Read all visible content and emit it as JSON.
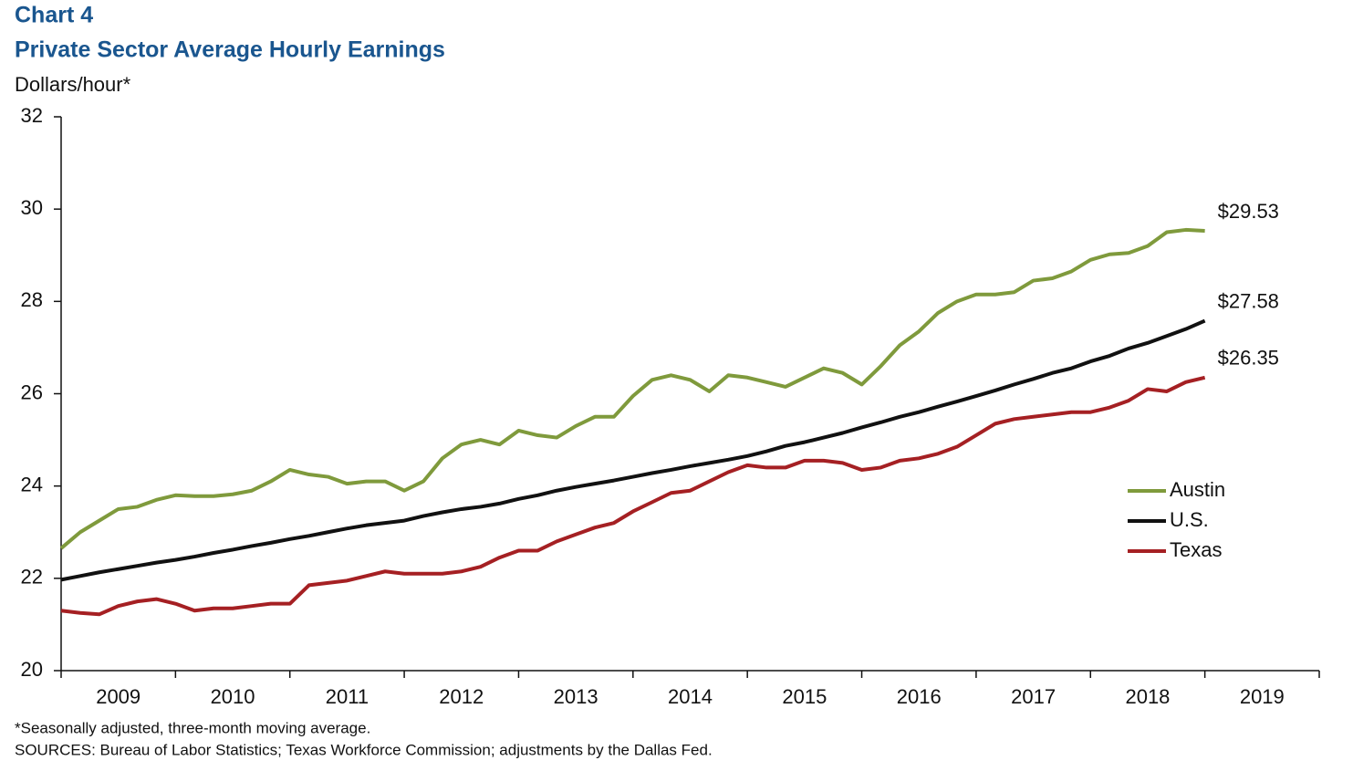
{
  "chart_data": {
    "type": "line",
    "label": "Chart 4",
    "title": "Private Sector Average Hourly Earnings",
    "y_label": "Dollars/hour*",
    "footnote": "*Seasonally adjusted, three-month  moving average.",
    "sources": "SOURCES: Bureau of Labor Statistics; Texas Workforce Commission; adjustments by the Dallas Fed.",
    "x": [
      2009,
      2009.167,
      2009.333,
      2009.5,
      2009.667,
      2009.833,
      2010,
      2010.167,
      2010.333,
      2010.5,
      2010.667,
      2010.833,
      2011,
      2011.167,
      2011.333,
      2011.5,
      2011.667,
      2011.833,
      2012,
      2012.167,
      2012.333,
      2012.5,
      2012.667,
      2012.833,
      2013,
      2013.167,
      2013.333,
      2013.5,
      2013.667,
      2013.833,
      2014,
      2014.167,
      2014.333,
      2014.5,
      2014.667,
      2014.833,
      2015,
      2015.167,
      2015.333,
      2015.5,
      2015.667,
      2015.833,
      2016,
      2016.167,
      2016.333,
      2016.5,
      2016.667,
      2016.833,
      2017,
      2017.167,
      2017.333,
      2017.5,
      2017.667,
      2017.833,
      2018,
      2018.167,
      2018.333,
      2018.5,
      2018.667,
      2018.833,
      2019
    ],
    "xlim": [
      2009,
      2020
    ],
    "xticks": [
      2009,
      2010,
      2011,
      2012,
      2013,
      2014,
      2015,
      2016,
      2017,
      2018,
      2019,
      2020
    ],
    "xlabels": [
      {
        "value": 2009.5,
        "label": "2009"
      },
      {
        "value": 2010.5,
        "label": "2010"
      },
      {
        "value": 2011.5,
        "label": "2011"
      },
      {
        "value": 2012.5,
        "label": "2012"
      },
      {
        "value": 2013.5,
        "label": "2013"
      },
      {
        "value": 2014.5,
        "label": "2014"
      },
      {
        "value": 2015.5,
        "label": "2015"
      },
      {
        "value": 2016.5,
        "label": "2016"
      },
      {
        "value": 2017.5,
        "label": "2017"
      },
      {
        "value": 2018.5,
        "label": "2018"
      },
      {
        "value": 2019.5,
        "label": "2019"
      }
    ],
    "ylim": [
      20,
      32
    ],
    "yticks": [
      20,
      22,
      24,
      26,
      28,
      30,
      32
    ],
    "series": [
      {
        "name": "Austin",
        "color": "#7f9a3c",
        "end_label": "$29.53",
        "values": [
          22.65,
          23.0,
          23.25,
          23.5,
          23.55,
          23.7,
          23.8,
          23.78,
          23.78,
          23.82,
          23.9,
          24.1,
          24.35,
          24.25,
          24.2,
          24.05,
          24.1,
          24.1,
          23.9,
          24.1,
          24.6,
          24.9,
          25.0,
          24.9,
          25.2,
          25.1,
          25.05,
          25.3,
          25.5,
          25.5,
          25.95,
          26.3,
          26.4,
          26.3,
          26.05,
          26.4,
          26.35,
          26.25,
          26.15,
          26.35,
          26.55,
          26.45,
          26.2,
          26.6,
          27.05,
          27.35,
          27.75,
          28.0,
          28.15,
          28.15,
          28.2,
          28.45,
          28.5,
          28.65,
          28.9,
          29.02,
          29.05,
          29.2,
          29.5,
          29.55,
          29.53
        ]
      },
      {
        "name": "U.S.",
        "color": "#111111",
        "end_label": "$27.58",
        "values": [
          21.97,
          22.05,
          22.13,
          22.2,
          22.27,
          22.34,
          22.4,
          22.47,
          22.55,
          22.62,
          22.7,
          22.77,
          22.85,
          22.92,
          23.0,
          23.08,
          23.15,
          23.2,
          23.25,
          23.35,
          23.43,
          23.5,
          23.55,
          23.62,
          23.72,
          23.8,
          23.9,
          23.98,
          24.05,
          24.12,
          24.2,
          24.28,
          24.35,
          24.43,
          24.5,
          24.57,
          24.65,
          24.75,
          24.87,
          24.95,
          25.05,
          25.15,
          25.27,
          25.38,
          25.5,
          25.6,
          25.72,
          25.83,
          25.95,
          26.07,
          26.2,
          26.32,
          26.45,
          26.55,
          26.7,
          26.82,
          26.98,
          27.1,
          27.25,
          27.4,
          27.58
        ]
      },
      {
        "name": "Texas",
        "color": "#a52023",
        "end_label": "$26.35",
        "values": [
          21.3,
          21.25,
          21.22,
          21.4,
          21.5,
          21.55,
          21.45,
          21.3,
          21.35,
          21.35,
          21.4,
          21.45,
          21.45,
          21.85,
          21.9,
          21.95,
          22.05,
          22.15,
          22.1,
          22.1,
          22.1,
          22.15,
          22.25,
          22.45,
          22.6,
          22.6,
          22.8,
          22.95,
          23.1,
          23.2,
          23.45,
          23.65,
          23.85,
          23.9,
          24.1,
          24.3,
          24.45,
          24.4,
          24.4,
          24.55,
          24.55,
          24.5,
          24.35,
          24.4,
          24.55,
          24.6,
          24.7,
          24.85,
          25.1,
          25.35,
          25.45,
          25.5,
          25.55,
          25.6,
          25.6,
          25.7,
          25.85,
          26.1,
          26.05,
          26.25,
          26.35
        ]
      }
    ]
  }
}
